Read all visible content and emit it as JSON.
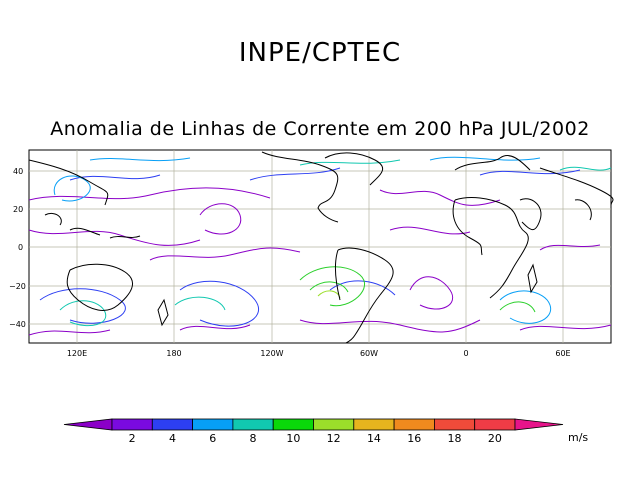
{
  "header": {
    "org": "INPE/CPTEC",
    "title": "Anomalia de Linhas de Corrente em 200 hPa JUL/2002"
  },
  "axes": {
    "lat_labels": [
      "40",
      "20",
      "0",
      "−20",
      "−40"
    ],
    "lon_labels": [
      "120E",
      "180",
      "120W",
      "60W",
      "0",
      "60E"
    ]
  },
  "colorbar": {
    "labels": [
      "2",
      "4",
      "6",
      "8",
      "10",
      "12",
      "14",
      "16",
      "18",
      "20"
    ],
    "unit": "m/s",
    "colors": [
      "#8b00c8",
      "#7a0ae0",
      "#2d3ff2",
      "#079ff6",
      "#11c8b0",
      "#0ad80a",
      "#9bde2a",
      "#e6b41e",
      "#f08a1e",
      "#f04b3a",
      "#ef3c46",
      "#e6148a"
    ]
  },
  "map_colors": {
    "land": "#000000",
    "grid": "#b4b4a0",
    "stream_low": "#8b00c8",
    "stream_mid": "#11c8b0",
    "stream_high": "#2bd02b"
  }
}
